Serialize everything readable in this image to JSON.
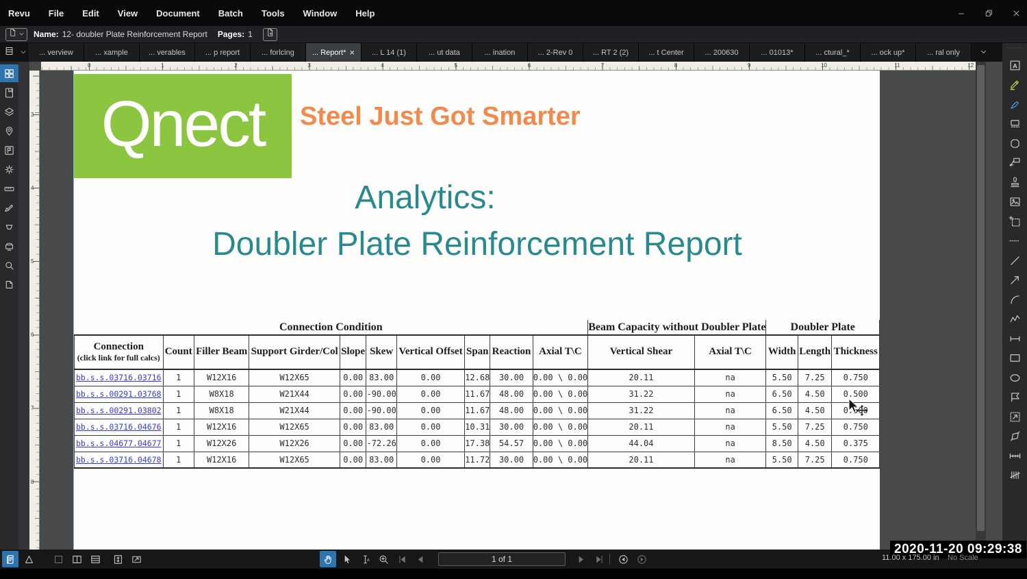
{
  "colors": {
    "accent_blue": "#2e75ad",
    "qnect_green": "#8cc540",
    "tagline_orange": "#f28a4d",
    "title_teal": "#288a8c",
    "link_blue": "#3a3acd"
  },
  "menu_bar": {
    "app": "Revu",
    "items": [
      "File",
      "Edit",
      "View",
      "Document",
      "Batch",
      "Tools",
      "Window",
      "Help"
    ]
  },
  "window_controls": {
    "icons": [
      "minimize",
      "restore",
      "close"
    ]
  },
  "name_bar": {
    "name_label": "Name:",
    "name_value": "12- doubler Plate Reinforcement Report",
    "pages_label": "Pages:",
    "pages_value": "1",
    "icons": [
      "doc-page",
      "chevron-down",
      "doc-add"
    ]
  },
  "tab_bar": {
    "tabs": [
      {
        "label": "... verview"
      },
      {
        "label": "... xample"
      },
      {
        "label": "... verables"
      },
      {
        "label": "... p report"
      },
      {
        "label": "... forlcing"
      },
      {
        "label": "... Report*",
        "active": true
      },
      {
        "label": "... L 14 (1)"
      },
      {
        "label": "... ut data"
      },
      {
        "label": "... ination"
      },
      {
        "label": "... 2-Rev 0"
      },
      {
        "label": "... RT 2 (2)"
      },
      {
        "label": "... t Center"
      },
      {
        "label": "... 200630"
      },
      {
        "label": "... 01013*"
      },
      {
        "label": "... ctural_*"
      },
      {
        "label": "... ock up*"
      },
      {
        "label": "... ral only"
      }
    ],
    "close_glyph": "×",
    "lead_icons": [
      "panel-toggle",
      "chevron-down"
    ],
    "overflow_icon": "chevron-down"
  },
  "left_sidebar": {
    "icons": [
      {
        "name": "thumbnails-grid",
        "active": true
      },
      {
        "name": "bookmarks"
      },
      {
        "name": "layers"
      },
      {
        "name": "spaces-pin"
      },
      {
        "name": "markups-flag"
      },
      {
        "name": "gear"
      },
      {
        "name": "ruler"
      },
      {
        "name": "signature-pen"
      },
      {
        "name": "form-trapezoid"
      },
      {
        "name": "projector"
      },
      {
        "name": "search"
      },
      {
        "name": "links-tag"
      }
    ]
  },
  "right_sidebar": {
    "handle": "........",
    "icons": [
      {
        "name": "text-tool"
      },
      {
        "name": "highlighter"
      },
      {
        "name": "pen"
      },
      {
        "name": "eraser-pad"
      },
      {
        "name": "cloud-polygon"
      },
      {
        "name": "callout"
      },
      {
        "name": "stamp"
      },
      {
        "name": "image"
      },
      {
        "name": "snapshot"
      },
      {
        "name": "dots-divider"
      },
      {
        "name": "line"
      },
      {
        "name": "arrow"
      },
      {
        "name": "arc"
      },
      {
        "name": "polyline"
      },
      {
        "name": "dimension"
      },
      {
        "name": "rectangle"
      },
      {
        "name": "ellipse"
      },
      {
        "name": "polygon-flag"
      },
      {
        "name": "measure-rect"
      },
      {
        "name": "area-polygon"
      },
      {
        "name": "length-measure"
      },
      {
        "name": "count-tally"
      }
    ]
  },
  "document": {
    "brand": {
      "logo_text": "Qnect",
      "tagline": "Steel Just Got Smarter"
    },
    "title_line1": "Analytics:",
    "title_line2": "Doubler Plate Reinforcement Report",
    "table": {
      "group_headers": [
        {
          "label": "Connection Condition",
          "span": 10
        },
        {
          "label": "Beam Capacity without Doubler Plate",
          "span": 2
        },
        {
          "label": "Doubler Plate",
          "span": 3
        }
      ],
      "columns": [
        {
          "label": "Connection",
          "sub": "(click link for full calcs)"
        },
        "Count",
        "Filler Beam",
        "Support Girder/Col",
        "Slope",
        "Skew",
        "Vertical Offset",
        "Span",
        "Reaction",
        "Axial T\\C",
        "Vertical Shear",
        "Axial T\\C",
        "Width",
        "Length",
        "Thickness"
      ],
      "rows": [
        [
          "bb.s.s.03716.03716",
          "1",
          "W12X16",
          "W12X65",
          "0.00",
          "83.00",
          "0.00",
          "12.68",
          "30.00",
          "0.00 \\ 0.00",
          "20.11",
          "na",
          "5.50",
          "7.25",
          "0.750"
        ],
        [
          "bb.s.s.00291.03768",
          "1",
          "W8X18",
          "W21X44",
          "0.00",
          "-90.00",
          "0.00",
          "11.67",
          "48.00",
          "0.00 \\ 0.00",
          "31.22",
          "na",
          "6.50",
          "4.50",
          "0.500"
        ],
        [
          "bb.s.s.00291.03802",
          "1",
          "W8X18",
          "W21X44",
          "0.00",
          "-90.00",
          "0.00",
          "11.67",
          "48.00",
          "0.00 \\ 0.00",
          "31.22",
          "na",
          "6.50",
          "4.50",
          "0.500"
        ],
        [
          "bb.s.s.03716.04676",
          "1",
          "W12X16",
          "W12X65",
          "0.00",
          "83.00",
          "0.00",
          "10.31",
          "30.00",
          "0.00 \\ 0.00",
          "20.11",
          "na",
          "5.50",
          "7.25",
          "0.750"
        ],
        [
          "bb.s.s.04677.04677",
          "1",
          "W12X26",
          "W12X26",
          "0.00",
          "-72.26",
          "0.00",
          "17.38",
          "54.57",
          "0.00 \\ 0.00",
          "44.04",
          "na",
          "8.50",
          "4.50",
          "0.375"
        ],
        [
          "bb.s.s.03716.04678",
          "1",
          "W12X16",
          "W12X65",
          "0.00",
          "83.00",
          "0.00",
          "11.72",
          "30.00",
          "0.00 \\ 0.00",
          "20.11",
          "na",
          "5.50",
          "7.25",
          "0.750"
        ]
      ]
    }
  },
  "rulers": {
    "h_labels": [
      0,
      1,
      2,
      3,
      4,
      5,
      6,
      7,
      8,
      9,
      10,
      11,
      12
    ],
    "v_labels": [
      3,
      4,
      5,
      6,
      7,
      8
    ]
  },
  "bottom_bar": {
    "left_tools": [
      {
        "name": "markups-list",
        "active": true
      },
      {
        "name": "delta-flag"
      },
      {
        "name": "single-pane",
        "dim": true
      },
      {
        "name": "split-vertical"
      },
      {
        "name": "split-horizontal"
      },
      {
        "name": "sync-views"
      },
      {
        "name": "detach-view"
      }
    ],
    "center_tools_before": [
      {
        "name": "pan-hand",
        "active": true
      },
      {
        "name": "select-cursor"
      },
      {
        "name": "text-select"
      },
      {
        "name": "zoom-in"
      },
      {
        "name": "page-first",
        "dim": true
      },
      {
        "name": "page-prev",
        "dim": true
      }
    ],
    "page_indicator": "1 of 1",
    "center_tools_after": [
      {
        "name": "page-next",
        "dim": true
      },
      {
        "name": "page-last",
        "dim": true
      },
      {
        "name": "divider"
      },
      {
        "name": "nav-back"
      },
      {
        "name": "nav-forward",
        "dim": true
      }
    ],
    "page_size": "11.00 x 175.00 in",
    "scale": "No Scale"
  },
  "overlay": {
    "timestamp": "2020-11-20 09:29:38"
  }
}
